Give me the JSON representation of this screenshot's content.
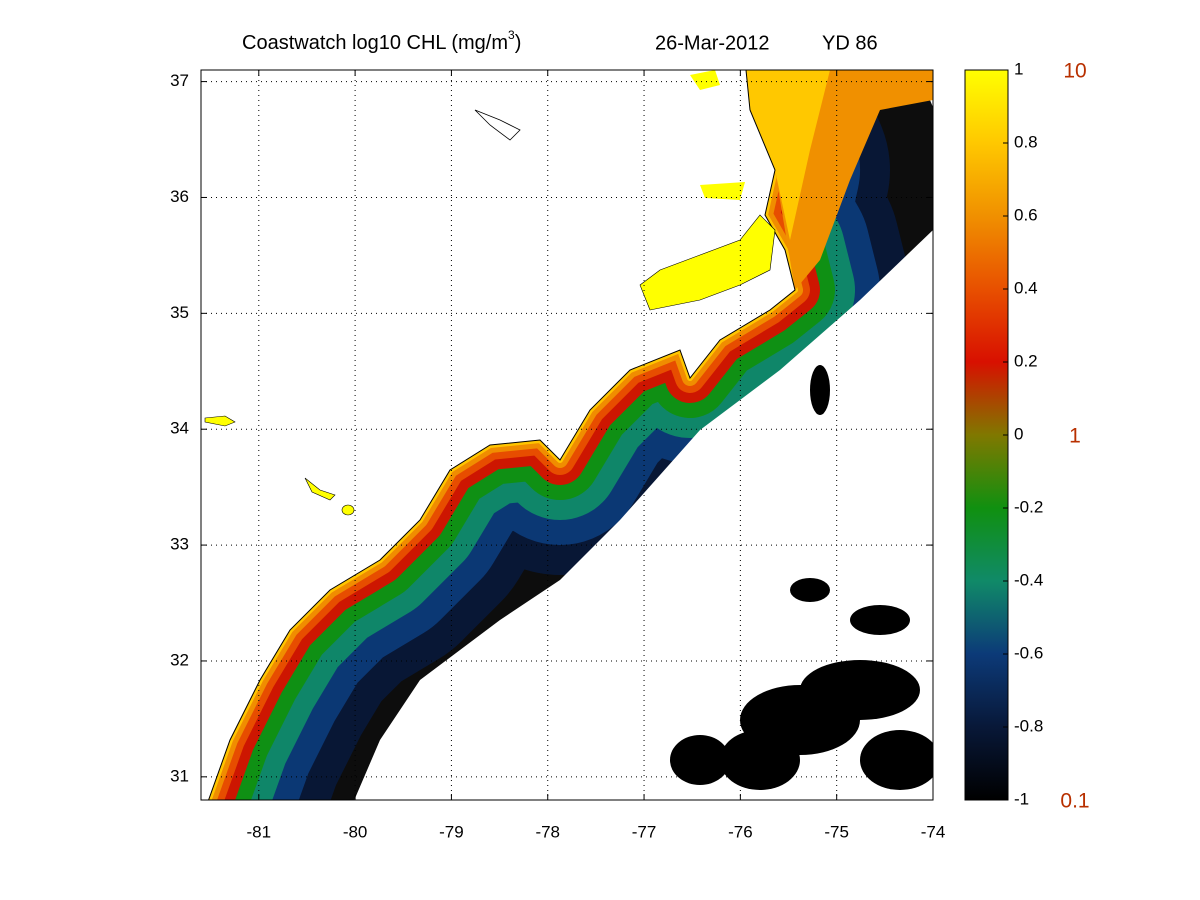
{
  "chart_data": {
    "type": "map",
    "title": [
      "Coastwatch  log10  CHL (mg/m",
      "3",
      ")"
    ],
    "date": "26-Mar-2012",
    "yearday": "YD 86",
    "xlim": [
      -81.6,
      -74
    ],
    "ylim": [
      30.8,
      37.1
    ],
    "xticks": [
      -81,
      -80,
      -79,
      -78,
      -77,
      -76,
      -75,
      -74
    ],
    "yticks": [
      31,
      32,
      33,
      34,
      35,
      36,
      37
    ],
    "grid": true,
    "colorbar": {
      "lim": [
        -1,
        1
      ],
      "ticks": [
        -1,
        -0.8,
        -0.6,
        -0.4,
        -0.2,
        0,
        0.2,
        0.4,
        0.6,
        0.8,
        1
      ],
      "log_ticks": [
        {
          "value": 1,
          "label": "10"
        },
        {
          "value": 0,
          "label": "1"
        },
        {
          "value": -1,
          "label": "0.1"
        }
      ],
      "colormap": [
        "#000000",
        "#081838",
        "#0c3a78",
        "#108a68",
        "#109010",
        "#807800",
        "#d81000",
        "#e85000",
        "#f09000",
        "#ffc800",
        "#ffff00"
      ]
    }
  }
}
